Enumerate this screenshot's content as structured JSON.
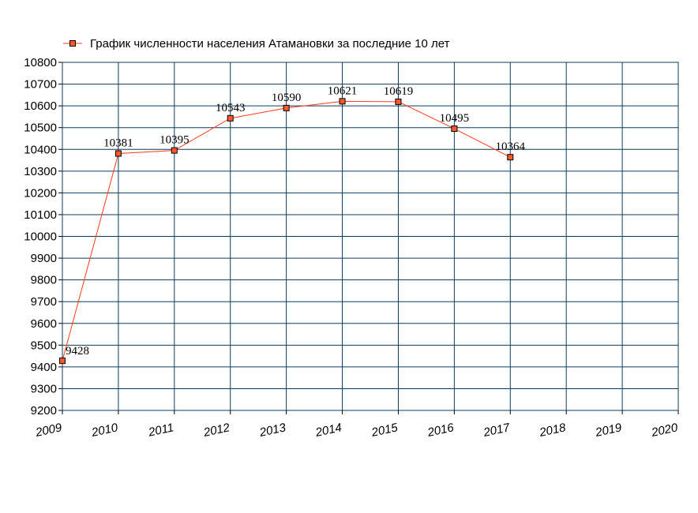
{
  "chart_data": {
    "type": "line",
    "title": "",
    "xlabel": "",
    "ylabel": "",
    "legend": {
      "position": "top-left",
      "label": "График численности населения Атамановки за последние 10 лет"
    },
    "x_categories": [
      "2009",
      "2010",
      "2011",
      "2012",
      "2013",
      "2014",
      "2015",
      "2016",
      "2017",
      "2018",
      "2019",
      "2020"
    ],
    "series": [
      {
        "name": "График численности населения Атамановки за последние 10 лет",
        "color": "#ff3b1f",
        "marker_color": "#ff5a28",
        "points": [
          {
            "x": "2009",
            "y": 9428
          },
          {
            "x": "2010",
            "y": 10381
          },
          {
            "x": "2011",
            "y": 10395
          },
          {
            "x": "2012",
            "y": 10543
          },
          {
            "x": "2013",
            "y": 10590
          },
          {
            "x": "2014",
            "y": 10621
          },
          {
            "x": "2015",
            "y": 10619
          },
          {
            "x": "2016",
            "y": 10495
          },
          {
            "x": "2017",
            "y": 10364
          }
        ]
      }
    ],
    "ylim": [
      9200,
      10800
    ],
    "ytick_step": 100,
    "yticks": [
      "9200",
      "9300",
      "9400",
      "9500",
      "9600",
      "9700",
      "9800",
      "9900",
      "10000",
      "10100",
      "10200",
      "10300",
      "10400",
      "10500",
      "10600",
      "10700",
      "10800"
    ],
    "grid": true,
    "grid_color": "#0f3a5a"
  }
}
